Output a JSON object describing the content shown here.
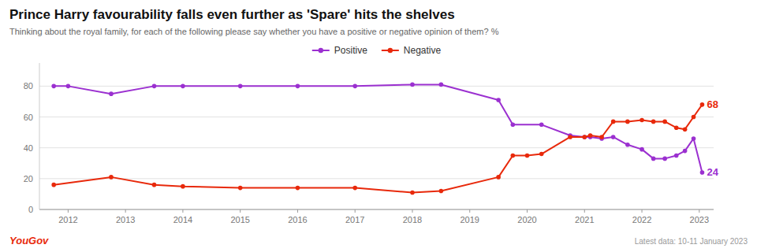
{
  "chart_data": {
    "type": "line",
    "title": "Prince Harry favourability falls even further as 'Spare' hits the shelves",
    "subtitle": "Thinking about the royal family, for each of the following please say whether you have a positive or negative opinion of them? %",
    "series": [
      {
        "name": "Positive",
        "color": "#9b30d0",
        "x": [
          2011.75,
          2012.0,
          2012.75,
          2013.5,
          2014.0,
          2015.0,
          2016.0,
          2017.0,
          2018.0,
          2018.5,
          2019.5,
          2019.75,
          2020.25,
          2020.75,
          2021.0,
          2021.1,
          2021.3,
          2021.5,
          2021.75,
          2022.0,
          2022.2,
          2022.4,
          2022.6,
          2022.75,
          2022.9,
          2023.05
        ],
        "values": [
          80,
          80,
          75,
          80,
          80,
          80,
          80,
          80,
          81,
          81,
          71,
          55,
          55,
          48,
          47,
          47,
          46,
          47,
          42,
          39,
          33,
          33,
          35,
          38,
          46,
          24
        ]
      },
      {
        "name": "Negative",
        "color": "#e8290b",
        "x": [
          2011.75,
          2012.75,
          2013.5,
          2014.0,
          2015.0,
          2016.0,
          2017.0,
          2018.0,
          2018.5,
          2019.5,
          2019.75,
          2020.0,
          2020.25,
          2020.75,
          2021.0,
          2021.1,
          2021.3,
          2021.5,
          2021.75,
          2022.0,
          2022.2,
          2022.4,
          2022.6,
          2022.75,
          2022.9,
          2023.05
        ],
        "values": [
          16,
          21,
          16,
          15,
          14,
          14,
          14,
          11,
          12,
          21,
          35,
          35,
          36,
          47,
          47,
          48,
          47,
          57,
          57,
          58,
          57,
          57,
          53,
          52,
          60,
          68
        ]
      }
    ],
    "annotations": [
      {
        "text": "24",
        "x": 2023.05,
        "y": 24,
        "color": "#9b30d0"
      },
      {
        "text": "68",
        "x": 2023.05,
        "y": 68,
        "color": "#e8290b"
      },
      {
        "text": "YouGov",
        "color": "#e8290b"
      }
    ],
    "footer": "Latest data: 10-11 January 2023",
    "xlim": [
      2011.5,
      2023.25
    ],
    "xticks": [
      2012,
      2013,
      2014,
      2015,
      2016,
      2017,
      2018,
      2019,
      2020,
      2021,
      2022,
      2023
    ],
    "ylim": [
      0,
      95
    ],
    "yticks": [
      0,
      20,
      40,
      60,
      80
    ],
    "grid": true,
    "legend": "top",
    "marker": "circle"
  }
}
